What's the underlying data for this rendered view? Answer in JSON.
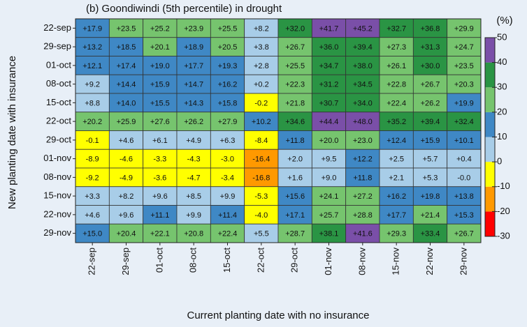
{
  "chart_data": {
    "type": "heatmap",
    "title": "(b) Goondiwindi (5th percentile) in drought",
    "x_label": "Current planting date with no insurance",
    "y_label": "New planting date with insurance",
    "colorbar_label": "(%)",
    "categories": [
      "22-sep",
      "29-sep",
      "01-oct",
      "08-oct",
      "15-oct",
      "22-oct",
      "29-oct",
      "01-nov",
      "08-nov",
      "15-nov",
      "22-nov",
      "29-nov"
    ],
    "rows": [
      "22-sep",
      "29-sep",
      "01-oct",
      "08-oct",
      "15-oct",
      "22-oct",
      "29-oct",
      "01-nov",
      "08-nov",
      "15-nov",
      "22-nov",
      "29-nov"
    ],
    "values": [
      [
        17.9,
        23.5,
        25.2,
        23.9,
        25.5,
        8.2,
        32.0,
        41.7,
        45.2,
        32.7,
        36.8,
        29.9
      ],
      [
        13.2,
        18.5,
        20.1,
        18.9,
        20.5,
        3.8,
        26.7,
        36.0,
        39.4,
        27.3,
        31.3,
        24.7
      ],
      [
        12.1,
        17.4,
        19.0,
        17.7,
        19.3,
        2.8,
        25.5,
        34.7,
        38.0,
        26.1,
        30.0,
        23.5
      ],
      [
        9.2,
        14.4,
        15.9,
        14.7,
        16.2,
        0.2,
        22.3,
        31.2,
        34.5,
        22.8,
        26.7,
        20.3
      ],
      [
        8.8,
        14.0,
        15.5,
        14.3,
        15.8,
        -0.2,
        21.8,
        30.7,
        34.0,
        22.4,
        26.2,
        19.9
      ],
      [
        20.2,
        25.9,
        27.6,
        26.2,
        27.9,
        10.2,
        34.6,
        44.4,
        48.0,
        35.2,
        39.4,
        32.4
      ],
      [
        -0.1,
        4.6,
        6.1,
        4.9,
        6.3,
        -8.4,
        11.8,
        20.0,
        23.0,
        12.4,
        15.9,
        10.1
      ],
      [
        -8.9,
        -4.6,
        -3.3,
        -4.3,
        -3.0,
        -16.4,
        2.0,
        9.5,
        12.2,
        2.5,
        5.7,
        0.4
      ],
      [
        -9.2,
        -4.9,
        -3.6,
        -4.7,
        -3.4,
        -16.8,
        1.6,
        9.0,
        11.8,
        2.1,
        5.3,
        -0.0
      ],
      [
        3.3,
        8.2,
        9.6,
        8.5,
        9.9,
        -5.3,
        15.6,
        24.1,
        27.2,
        16.2,
        19.8,
        13.8
      ],
      [
        4.6,
        9.6,
        11.1,
        9.9,
        11.4,
        -4.0,
        17.1,
        25.7,
        28.8,
        17.7,
        21.4,
        15.3
      ],
      [
        15.0,
        20.4,
        22.1,
        20.8,
        22.4,
        5.5,
        28.7,
        38.1,
        41.6,
        29.3,
        33.4,
        26.7
      ]
    ],
    "value_labels": [
      [
        "+17.9",
        "+23.5",
        "+25.2",
        "+23.9",
        "+25.5",
        "+8.2",
        "+32.0",
        "+41.7",
        "+45.2",
        "+32.7",
        "+36.8",
        "+29.9"
      ],
      [
        "+13.2",
        "+18.5",
        "+20.1",
        "+18.9",
        "+20.5",
        "+3.8",
        "+26.7",
        "+36.0",
        "+39.4",
        "+27.3",
        "+31.3",
        "+24.7"
      ],
      [
        "+12.1",
        "+17.4",
        "+19.0",
        "+17.7",
        "+19.3",
        "+2.8",
        "+25.5",
        "+34.7",
        "+38.0",
        "+26.1",
        "+30.0",
        "+23.5"
      ],
      [
        "+9.2",
        "+14.4",
        "+15.9",
        "+14.7",
        "+16.2",
        "+0.2",
        "+22.3",
        "+31.2",
        "+34.5",
        "+22.8",
        "+26.7",
        "+20.3"
      ],
      [
        "+8.8",
        "+14.0",
        "+15.5",
        "+14.3",
        "+15.8",
        "-0.2",
        "+21.8",
        "+30.7",
        "+34.0",
        "+22.4",
        "+26.2",
        "+19.9"
      ],
      [
        "+20.2",
        "+25.9",
        "+27.6",
        "+26.2",
        "+27.9",
        "+10.2",
        "+34.6",
        "+44.4",
        "+48.0",
        "+35.2",
        "+39.4",
        "+32.4"
      ],
      [
        "-0.1",
        "+4.6",
        "+6.1",
        "+4.9",
        "+6.3",
        "-8.4",
        "+11.8",
        "+20.0",
        "+23.0",
        "+12.4",
        "+15.9",
        "+10.1"
      ],
      [
        "-8.9",
        "-4.6",
        "-3.3",
        "-4.3",
        "-3.0",
        "-16.4",
        "+2.0",
        "+9.5",
        "+12.2",
        "+2.5",
        "+5.7",
        "+0.4"
      ],
      [
        "-9.2",
        "-4.9",
        "-3.6",
        "-4.7",
        "-3.4",
        "-16.8",
        "+1.6",
        "+9.0",
        "+11.8",
        "+2.1",
        "+5.3",
        "-0.0"
      ],
      [
        "+3.3",
        "+8.2",
        "+9.6",
        "+8.5",
        "+9.9",
        "-5.3",
        "+15.6",
        "+24.1",
        "+27.2",
        "+16.2",
        "+19.8",
        "+13.8"
      ],
      [
        "+4.6",
        "+9.6",
        "+11.1",
        "+9.9",
        "+11.4",
        "-4.0",
        "+17.1",
        "+25.7",
        "+28.8",
        "+17.7",
        "+21.4",
        "+15.3"
      ],
      [
        "+15.0",
        "+20.4",
        "+22.1",
        "+20.8",
        "+22.4",
        "+5.5",
        "+28.7",
        "+38.1",
        "+41.6",
        "+29.3",
        "+33.4",
        "+26.7"
      ]
    ],
    "clim": [
      -30,
      50
    ],
    "cticks": [
      50,
      40,
      30,
      20,
      10,
      0,
      -10,
      -20,
      -30
    ],
    "ccolors": [
      "#ff0000",
      "#ff9900",
      "#ffff00",
      "#a8cde8",
      "#3f88c5",
      "#76c46e",
      "#2a9444",
      "#7a4fa8"
    ]
  }
}
